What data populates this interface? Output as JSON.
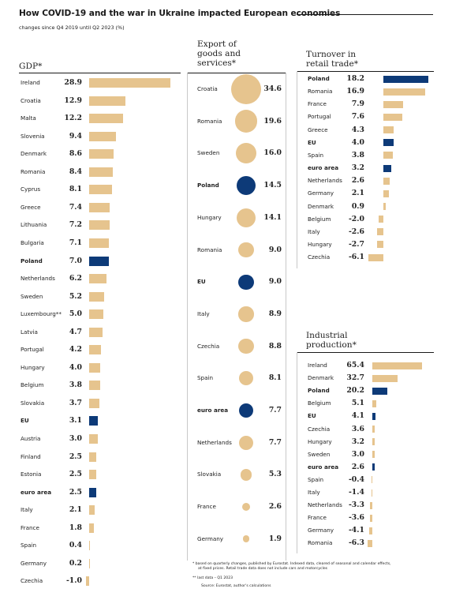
{
  "header": {
    "title": "How COVID-19 and the war in Ukraine impacted European economies",
    "subtitle": "changes since Q4 2019 until Q2 2023 (%)"
  },
  "colors": {
    "beige": "#e6c48e",
    "navy": "#0d3a78"
  },
  "chart_data": [
    {
      "type": "bar",
      "title": "GDP*",
      "categories": [
        "Ireland",
        "Croatia",
        "Malta",
        "Slovenia",
        "Denmark",
        "Romania",
        "Cyprus",
        "Greece",
        "Lithuania",
        "Bulgaria",
        "Poland",
        "Netherlands",
        "Sweden",
        "Luxembourg**",
        "Latvia",
        "Portugal",
        "Hungary",
        "Belgium",
        "Slovakia",
        "EU",
        "Austria",
        "Finland",
        "Estonia",
        "euro area",
        "Italy",
        "France",
        "Spain",
        "Germany",
        "Czechia"
      ],
      "value_labels": [
        "28.9",
        "12.9",
        "12.2",
        "9.4",
        "8.6",
        "8.4",
        "8.1",
        "7.4",
        "7.2",
        "7.1",
        "7.0",
        "6.2",
        "5.2",
        "5.0",
        "4.7",
        "4.2",
        "4.0",
        "3.8",
        "3.7",
        "3.1",
        "3.0",
        "2.5",
        "2.5",
        "2.5",
        "2.1",
        "1.8",
        "0.4",
        "0.2",
        "-1.0"
      ],
      "values": [
        28.9,
        12.9,
        12.2,
        9.4,
        8.6,
        8.4,
        8.1,
        7.4,
        7.2,
        7.1,
        7.0,
        6.2,
        5.2,
        5.0,
        4.7,
        4.2,
        4.0,
        3.8,
        3.7,
        3.1,
        3.0,
        2.5,
        2.5,
        2.5,
        2.1,
        1.8,
        0.4,
        0.2,
        -1.0
      ],
      "highlight": [
        "Poland",
        "EU",
        "euro area"
      ]
    },
    {
      "type": "scatter",
      "title": "Export of goods and services*",
      "categories": [
        "Croatia",
        "Romania",
        "Sweden",
        "Poland",
        "Hungary",
        "Romania",
        "EU",
        "Italy",
        "Czechia",
        "Spain",
        "euro area",
        "Netherlands",
        "Slovakia",
        "France",
        "Germany"
      ],
      "value_labels": [
        "34.6",
        "19.6",
        "16.0",
        "14.5",
        "14.1",
        "9.0",
        "9.0",
        "8.9",
        "8.8",
        "8.1",
        "7.7",
        "7.7",
        "5.3",
        "2.6",
        "1.9"
      ],
      "values": [
        34.6,
        19.6,
        16.0,
        14.5,
        14.1,
        9.0,
        9.0,
        8.9,
        8.8,
        8.1,
        7.7,
        7.7,
        5.3,
        2.6,
        1.9
      ],
      "highlight": [
        "Poland",
        "EU",
        "euro area"
      ]
    },
    {
      "type": "bar",
      "title": "Turnover in retail trade*",
      "categories": [
        "Poland",
        "Romania",
        "France",
        "Portugal",
        "Greece",
        "EU",
        "Spain",
        "euro area",
        "Netherlands",
        "Germany",
        "Denmark",
        "Belgium",
        "Italy",
        "Hungary",
        "Czechia"
      ],
      "value_labels": [
        "18.2",
        "16.9",
        "7.9",
        "7.6",
        "4.3",
        "4.0",
        "3.8",
        "3.2",
        "2.6",
        "2.1",
        "0.9",
        "-2.0",
        "-2.6",
        "-2.7",
        "-6.1"
      ],
      "values": [
        18.2,
        16.9,
        7.9,
        7.6,
        4.3,
        4.0,
        3.8,
        3.2,
        2.6,
        2.1,
        0.9,
        -2.0,
        -2.6,
        -2.7,
        -6.1
      ],
      "highlight": [
        "Poland",
        "EU",
        "euro area"
      ]
    },
    {
      "type": "bar",
      "title": "Industrial production*",
      "categories": [
        "Ireland",
        "Denmark",
        "Poland",
        "Belgium",
        "EU",
        "Czechia",
        "Hungary",
        "Sweden",
        "euro area",
        "Spain",
        "Italy",
        "Netherlands",
        "France",
        "Germany",
        "Romania"
      ],
      "value_labels": [
        "65.4",
        "32.7",
        "20.2",
        "5.1",
        "4.1",
        "3.6",
        "3.2",
        "3.0",
        "2.6",
        "-0.4",
        "-1.4",
        "-3.3",
        "-3.6",
        "-4.1",
        "-6.3"
      ],
      "values": [
        65.4,
        32.7,
        20.2,
        5.1,
        4.1,
        3.6,
        3.2,
        3.0,
        2.6,
        -0.4,
        -1.4,
        -3.3,
        -3.6,
        -4.1,
        -6.3
      ],
      "highlight": [
        "Poland",
        "EU",
        "euro area"
      ]
    }
  ],
  "footnotes": {
    "note1_line1": "* based on quarterly changes, published by Eurostat. Indexed data, cleared of seasonal and calendar effects,",
    "note1_line2": "at fixed prices. Retail trade data does not include cars and motorcycles",
    "note2": "** last data – Q1 2023",
    "source": "Source: Eurostat, author's calculations"
  }
}
